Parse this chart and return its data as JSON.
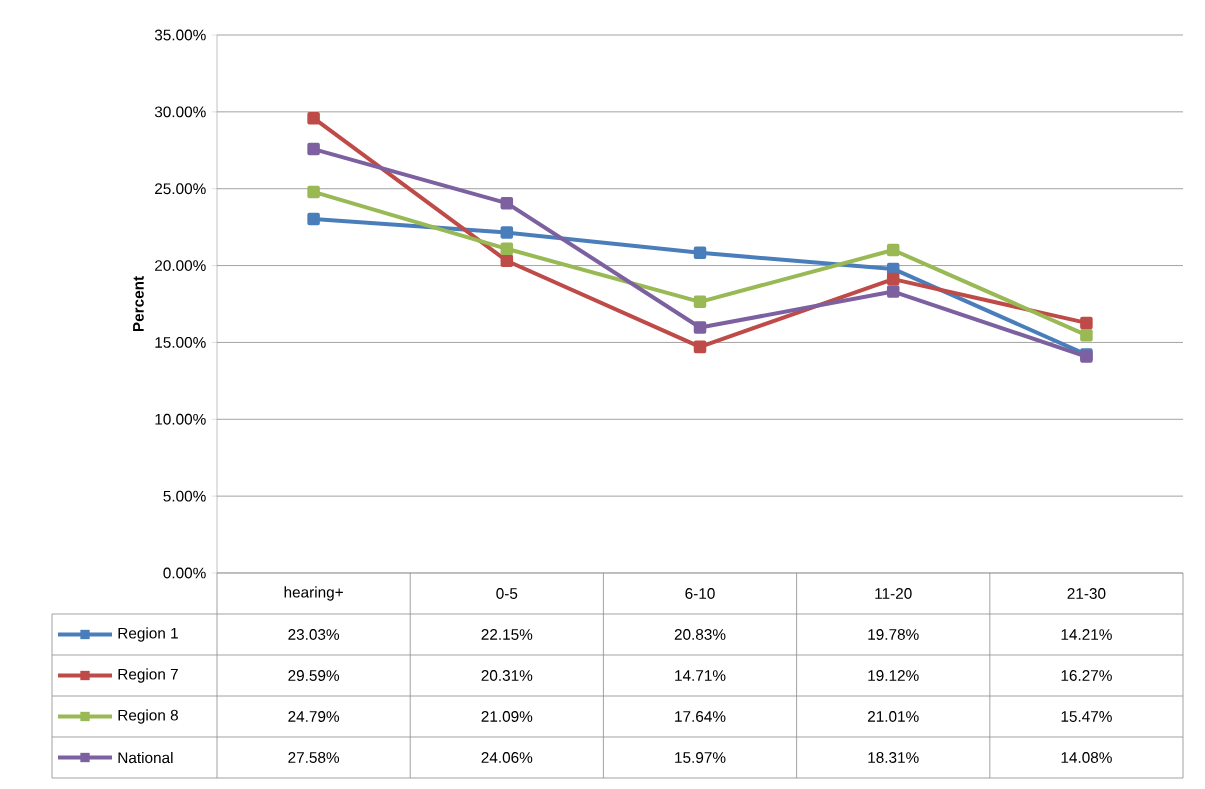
{
  "chart_data": {
    "type": "line",
    "ylabel": "Percent",
    "categories": [
      "hearing+",
      "0-5",
      "6-10",
      "11-20",
      "21-30"
    ],
    "ylim": [
      0,
      35
    ],
    "yticks": [
      {
        "value": 0,
        "label": "0.00%"
      },
      {
        "value": 5,
        "label": "5.00%"
      },
      {
        "value": 10,
        "label": "10.00%"
      },
      {
        "value": 15,
        "label": "15.00%"
      },
      {
        "value": 20,
        "label": "20.00%"
      },
      {
        "value": 25,
        "label": "25.00%"
      },
      {
        "value": 30,
        "label": "30.00%"
      },
      {
        "value": 35,
        "label": "35.00%"
      }
    ],
    "grid": "y",
    "legend": "bottom",
    "marker": "square",
    "line_style": "solid",
    "series": [
      {
        "name": "Region 1",
        "color": "#4a7ebb",
        "values": [
          23.03,
          22.15,
          20.83,
          19.78,
          14.21
        ],
        "value_labels": [
          "23.03%",
          "22.15%",
          "20.83%",
          "19.78%",
          "14.21%"
        ]
      },
      {
        "name": "Region 7",
        "color": "#be4b48",
        "values": [
          29.59,
          20.31,
          14.71,
          19.12,
          16.27
        ],
        "value_labels": [
          "29.59%",
          "20.31%",
          "14.71%",
          "19.12%",
          "16.27%"
        ]
      },
      {
        "name": "Region 8",
        "color": "#98b954",
        "values": [
          24.79,
          21.09,
          17.64,
          21.01,
          15.47
        ],
        "value_labels": [
          "24.79%",
          "21.09%",
          "17.64%",
          "21.01%",
          "15.47%"
        ]
      },
      {
        "name": "National",
        "color": "#7d60a0",
        "values": [
          27.58,
          24.06,
          15.97,
          18.31,
          14.08
        ],
        "value_labels": [
          "27.58%",
          "24.06%",
          "15.97%",
          "18.31%",
          "14.08%"
        ]
      }
    ]
  }
}
